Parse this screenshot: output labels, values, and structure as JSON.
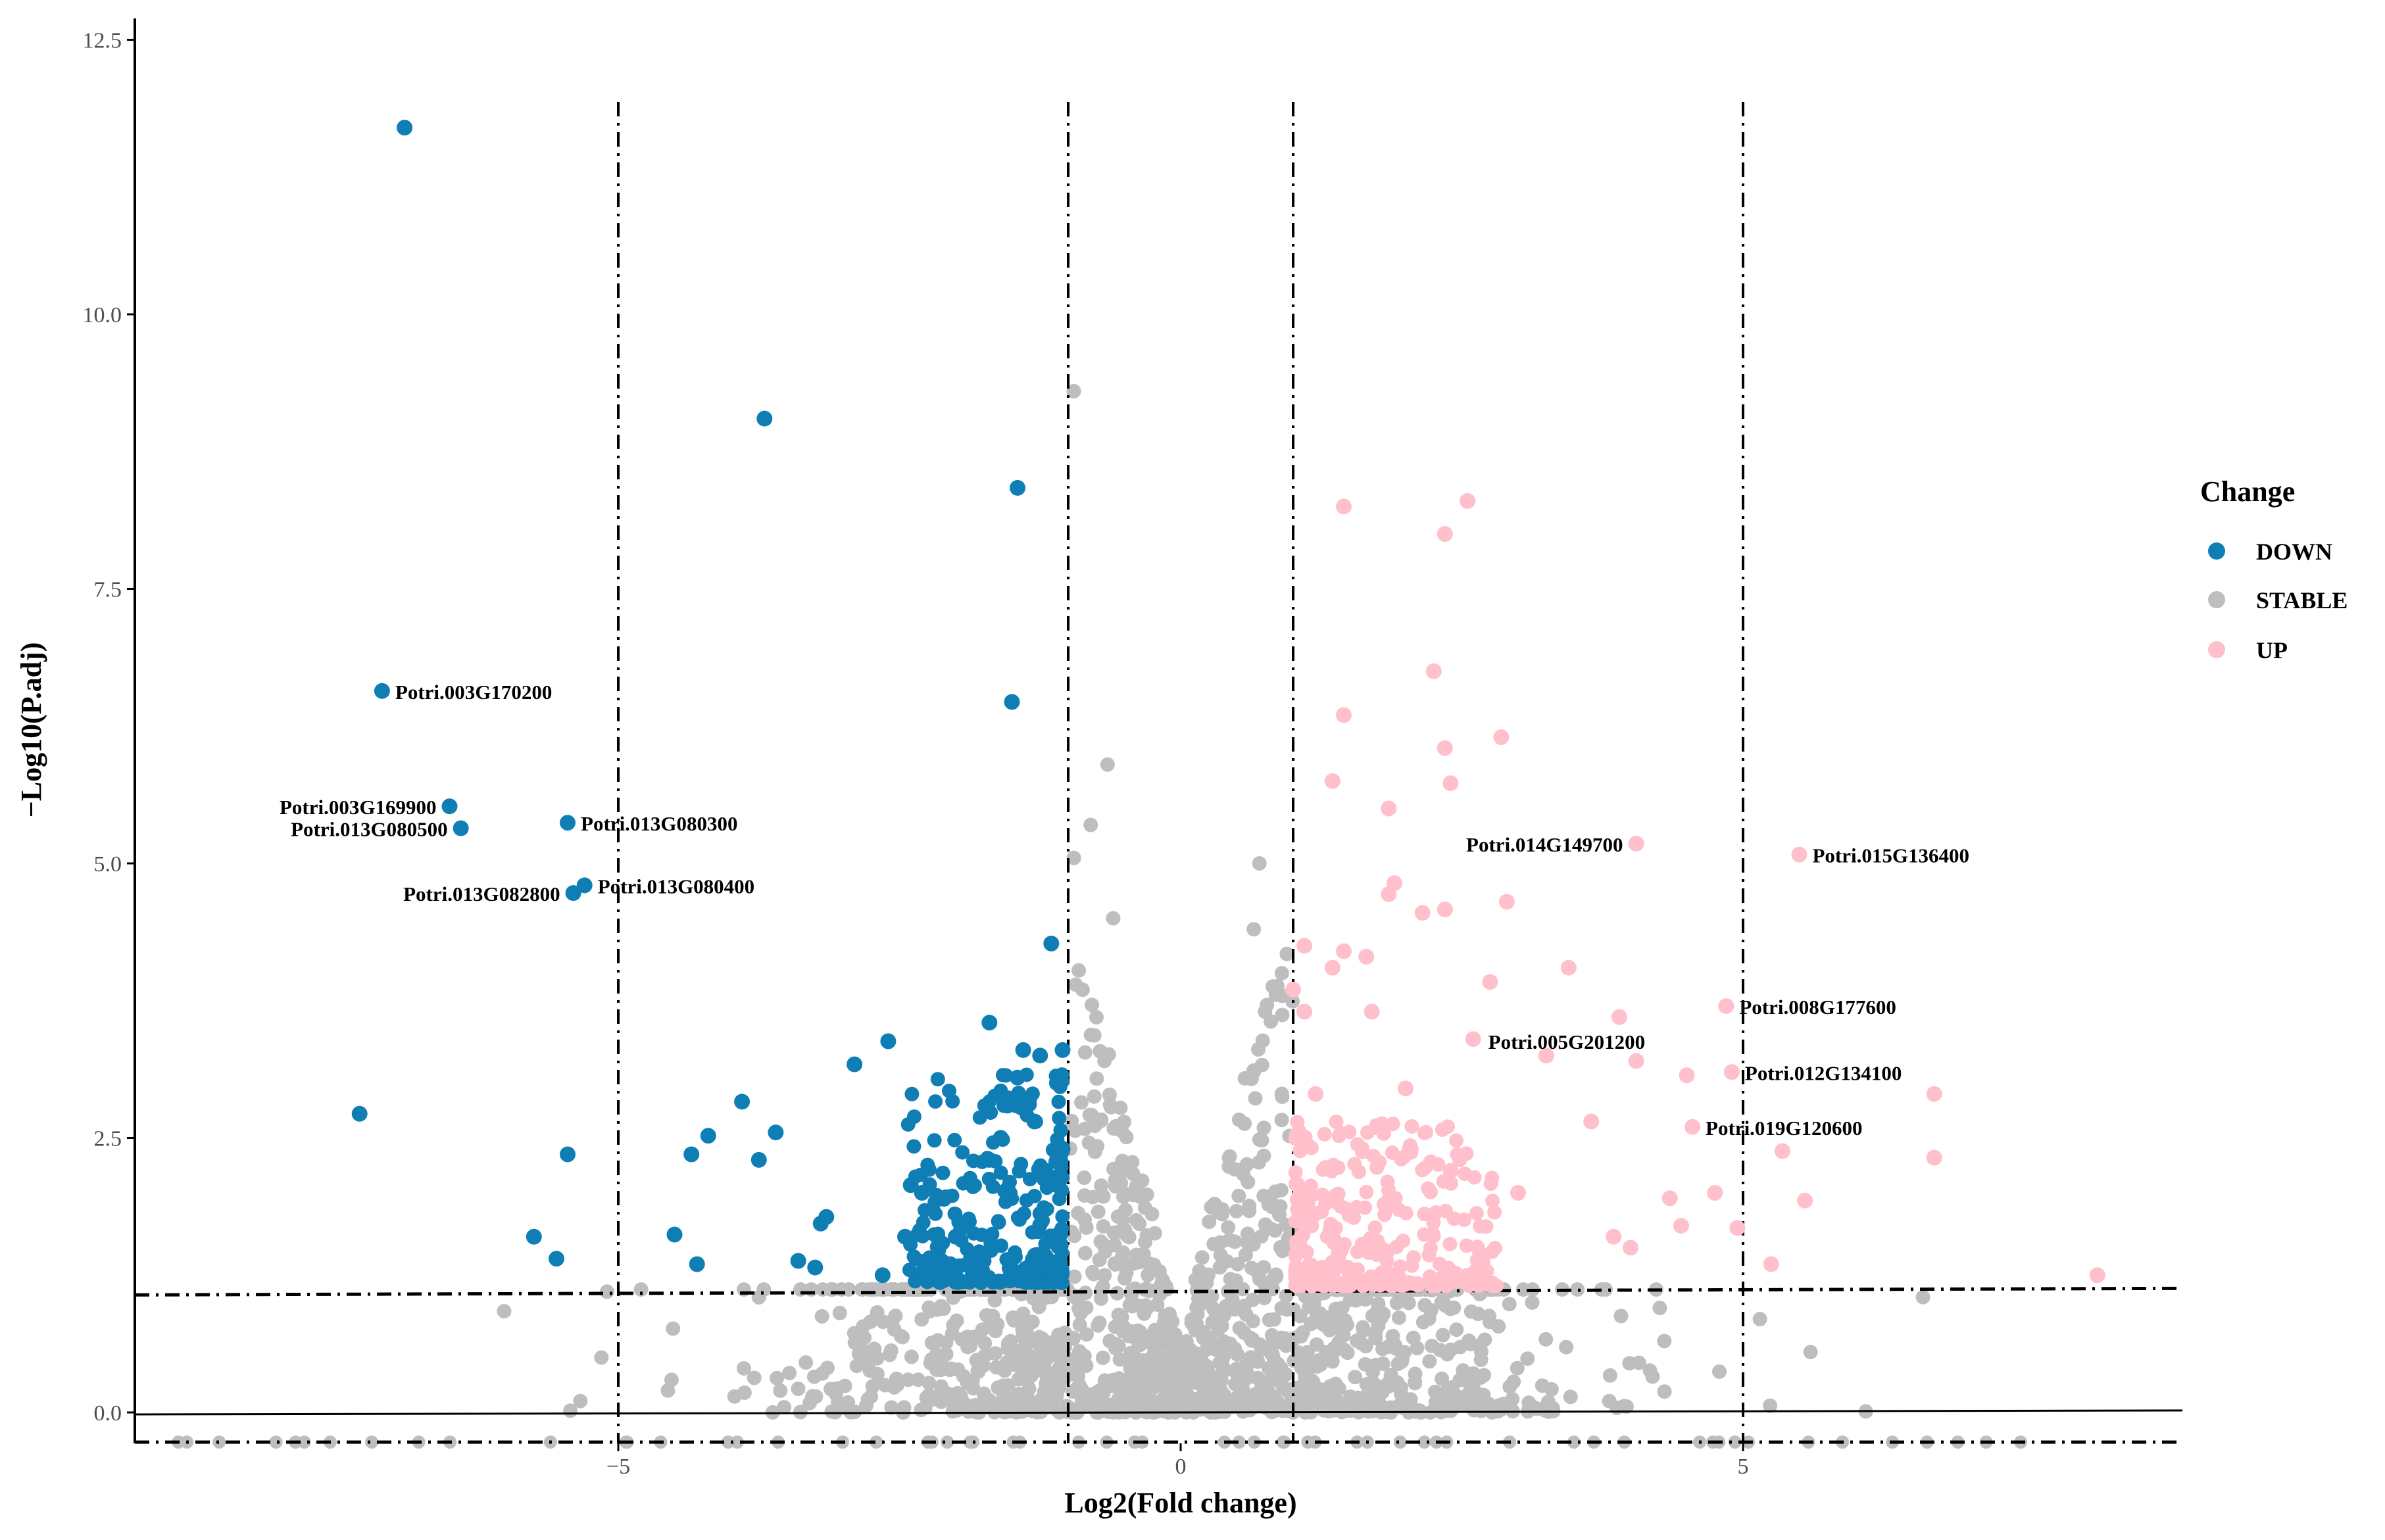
{
  "chart_data": {
    "type": "scatter",
    "title": "",
    "xlabel": "Log2(Fold change)",
    "ylabel": "−Log10(P.adj)",
    "xlim": [
      -9.3,
      8.9
    ],
    "ylim": [
      -0.4,
      12.8
    ],
    "x_ticks": [
      -5,
      0,
      5
    ],
    "x_tick_labels": [
      "−5",
      "0",
      "5"
    ],
    "y_ticks": [
      0,
      2.5,
      5,
      7.5,
      10,
      12.5
    ],
    "y_tick_labels": [
      "0.0",
      "2.5",
      "5.0",
      "7.5",
      "10.0",
      "12.5"
    ],
    "vlines": [
      -5,
      -1,
      1,
      5
    ],
    "hlines": [
      1.1,
      -0.27
    ],
    "hline_solid": 0,
    "grid": false,
    "legend": {
      "title": "Change",
      "position": "right",
      "entries": [
        {
          "name": "DOWN",
          "color": "#0e7eb5"
        },
        {
          "name": "STABLE",
          "color": "#bebebe"
        },
        {
          "name": "UP",
          "color": "#ffc0cb"
        }
      ]
    },
    "colors": {
      "DOWN": "#0e7eb5",
      "STABLE": "#bebebe",
      "UP": "#ffc0cb"
    },
    "series": [
      {
        "name": "DOWN",
        "points": [
          [
            -6.9,
            11.7
          ],
          [
            -3.7,
            9.05
          ],
          [
            -1.45,
            8.42
          ],
          [
            -1.5,
            6.47
          ],
          [
            -7.1,
            6.57
          ],
          [
            -6.5,
            5.52
          ],
          [
            -6.4,
            5.32
          ],
          [
            -5.45,
            5.37
          ],
          [
            -5.3,
            4.8
          ],
          [
            -5.4,
            4.73
          ],
          [
            -1.15,
            4.27
          ],
          [
            -7.3,
            2.72
          ],
          [
            -5.45,
            2.35
          ],
          [
            -5.75,
            1.6
          ],
          [
            -5.55,
            1.4
          ],
          [
            -4.5,
            1.62
          ],
          [
            -4.3,
            1.35
          ],
          [
            -4.35,
            2.35
          ],
          [
            -4.2,
            2.52
          ],
          [
            -3.9,
            2.83
          ],
          [
            -3.75,
            2.3
          ],
          [
            -3.6,
            2.55
          ],
          [
            -3.4,
            1.38
          ],
          [
            -3.25,
            1.32
          ],
          [
            -3.2,
            1.72
          ],
          [
            -3.15,
            1.78
          ],
          [
            -2.9,
            3.17
          ],
          [
            -2.6,
            3.38
          ],
          [
            -2.65,
            1.25
          ],
          [
            -2.45,
            1.6
          ],
          [
            -2.4,
            2.07
          ],
          [
            -2.3,
            2.0
          ],
          [
            -2.2,
            1.25
          ],
          [
            -2.05,
            1.35
          ],
          [
            -2.0,
            1.6
          ],
          [
            -1.9,
            1.7
          ],
          [
            -1.85,
            1.25
          ],
          [
            -1.7,
            3.55
          ],
          [
            -1.7,
            2.3
          ],
          [
            -1.6,
            2.5
          ],
          [
            -1.5,
            1.4
          ],
          [
            -1.45,
            3.05
          ],
          [
            -1.4,
            3.3
          ],
          [
            -1.3,
            2.65
          ],
          [
            -1.25,
            3.25
          ],
          [
            -1.1,
            3.0
          ],
          [
            -1.05,
            3.3
          ],
          [
            -1.05,
            2.4
          ]
        ]
      },
      {
        "name": "UP",
        "points": [
          [
            1.45,
            8.25
          ],
          [
            2.55,
            8.3
          ],
          [
            2.35,
            8.0
          ],
          [
            2.25,
            6.75
          ],
          [
            1.45,
            6.35
          ],
          [
            2.35,
            6.05
          ],
          [
            2.85,
            6.15
          ],
          [
            1.35,
            5.75
          ],
          [
            2.4,
            5.73
          ],
          [
            1.85,
            5.5
          ],
          [
            4.05,
            5.18
          ],
          [
            5.5,
            5.08
          ],
          [
            1.9,
            4.82
          ],
          [
            1.85,
            4.72
          ],
          [
            2.15,
            4.55
          ],
          [
            2.35,
            4.58
          ],
          [
            2.9,
            4.65
          ],
          [
            1.1,
            4.25
          ],
          [
            1.45,
            4.2
          ],
          [
            1.65,
            4.15
          ],
          [
            1.35,
            4.05
          ],
          [
            3.45,
            4.05
          ],
          [
            1.0,
            3.85
          ],
          [
            2.75,
            3.92
          ],
          [
            4.85,
            3.7
          ],
          [
            3.9,
            3.6
          ],
          [
            1.1,
            3.65
          ],
          [
            1.7,
            3.65
          ],
          [
            2.6,
            3.4
          ],
          [
            4.05,
            3.2
          ],
          [
            3.25,
            3.25
          ],
          [
            4.5,
            3.07
          ],
          [
            4.9,
            3.1
          ],
          [
            6.7,
            2.9
          ],
          [
            4.55,
            2.6
          ],
          [
            5.35,
            2.38
          ],
          [
            6.7,
            2.32
          ],
          [
            5.55,
            1.93
          ],
          [
            1.2,
            2.9
          ],
          [
            2.0,
            2.95
          ],
          [
            3.65,
            2.65
          ],
          [
            4.35,
            1.95
          ],
          [
            4.75,
            2.0
          ],
          [
            3.85,
            1.6
          ],
          [
            4.0,
            1.5
          ],
          [
            4.45,
            1.7
          ],
          [
            4.95,
            1.68
          ],
          [
            5.25,
            1.35
          ],
          [
            8.15,
            1.25
          ],
          [
            1.5,
            1.8
          ],
          [
            2.4,
            2.2
          ],
          [
            3.0,
            2.0
          ]
        ]
      }
    ],
    "annotations": [
      {
        "text": "Potri.003G170200",
        "x": -7.1,
        "y": 6.57,
        "anchor": "start"
      },
      {
        "text": "Potri.003G169900",
        "x": -6.5,
        "y": 5.52,
        "anchor": "end"
      },
      {
        "text": "Potri.013G080500",
        "x": -6.4,
        "y": 5.32,
        "anchor": "end"
      },
      {
        "text": "Potri.013G080300",
        "x": -5.45,
        "y": 5.37,
        "anchor": "start"
      },
      {
        "text": "Potri.013G082800",
        "x": -5.4,
        "y": 4.73,
        "anchor": "end"
      },
      {
        "text": "Potri.013G080400",
        "x": -5.3,
        "y": 4.8,
        "anchor": "start"
      },
      {
        "text": "Potri.014G149700",
        "x": 4.05,
        "y": 5.18,
        "anchor": "end"
      },
      {
        "text": "Potri.015G136400",
        "x": 5.5,
        "y": 5.08,
        "anchor": "start"
      },
      {
        "text": "Potri.008G177600",
        "x": 4.85,
        "y": 3.7,
        "anchor": "start"
      },
      {
        "text": "Potri.005G201200",
        "x": 3.9,
        "y": 3.6,
        "anchor": "middle"
      },
      {
        "text": "Potri.012G134100",
        "x": 4.9,
        "y": 3.1,
        "anchor": "start"
      },
      {
        "text": "Potri.019G120600",
        "x": 4.55,
        "y": 2.6,
        "anchor": "start"
      }
    ]
  }
}
